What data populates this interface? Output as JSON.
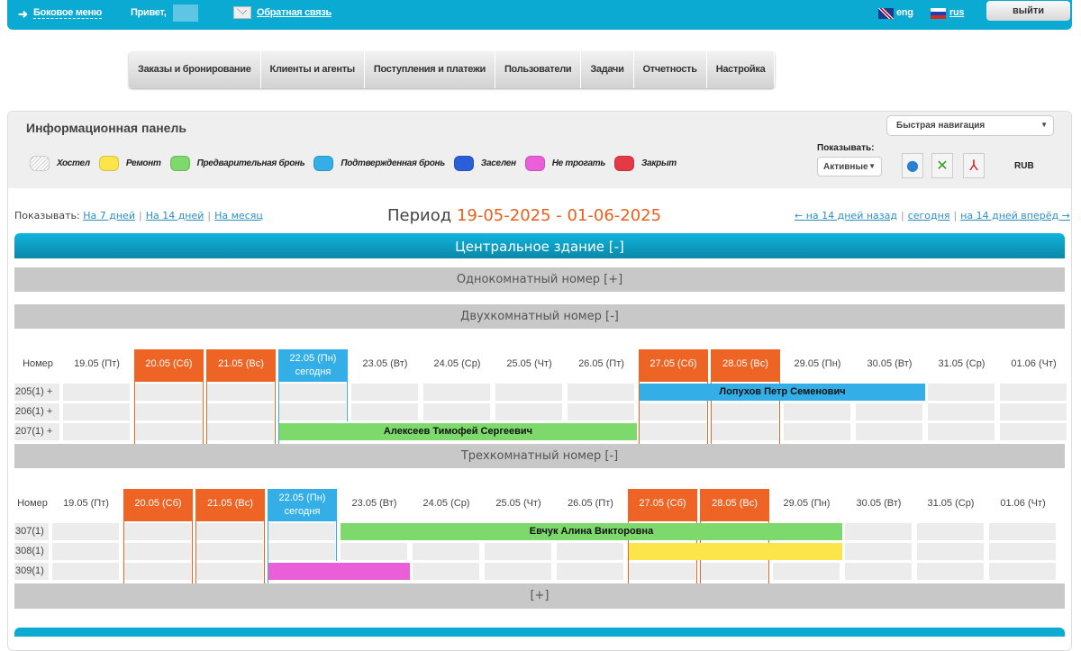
{
  "topbar": {
    "side_menu": "Боковое меню",
    "greeting": "Привет,",
    "feedback": "Обратная связь",
    "lang_en": "eng",
    "lang_ru": "rus",
    "exit": "выйти"
  },
  "menu": [
    "Заказы и бронирование",
    "Клиенты и агенты",
    "Поступления и платежи",
    "Пользователи",
    "Задачи",
    "Отчетность",
    "Настройка"
  ],
  "panel": {
    "title": "Информационная панель",
    "quick_nav": "Быстрая навигация",
    "show_label": "Показывать:",
    "show_value": "Активные",
    "currency": "RUB",
    "legend": [
      {
        "label": "Хостел",
        "color": "#e8e8e8"
      },
      {
        "label": "Ремонт",
        "color": "#fbe54a"
      },
      {
        "label": "Предварительная бронь",
        "color": "#7dd96c"
      },
      {
        "label": "Подтвержденная бронь",
        "color": "#34aee6"
      },
      {
        "label": "Заселен",
        "color": "#2a5fd8"
      },
      {
        "label": "Не трогать",
        "color": "#ea5fd8"
      },
      {
        "label": "Закрыт",
        "color": "#e43a45"
      }
    ]
  },
  "filters": {
    "show": "Показывать:",
    "d7": "На 7 дней",
    "d14": "На 14 дней",
    "month": "На месяц"
  },
  "period": {
    "label": "Период",
    "range": "19-05-2025 - 01-06-2025"
  },
  "nav": {
    "back": "← на 14 дней назад",
    "today": "сегодня",
    "forward": "на 14 дней вперёд →"
  },
  "building": "Центральное здание [-]",
  "room_types": {
    "single": "Однокомнатный номер [+]",
    "double": "Двухкомнатный номер [-]",
    "triple": "Трехкомнатный номер [-]"
  },
  "col_room": "Номер",
  "today_label": "сегодня",
  "days": [
    {
      "d": "19.05 (Пт)"
    },
    {
      "d": "20.05 (Сб)",
      "we": true
    },
    {
      "d": "21.05 (Вс)",
      "we": true
    },
    {
      "d": "22.05 (Пн)",
      "today": true
    },
    {
      "d": "23.05 (Вт)"
    },
    {
      "d": "24.05 (Ср)"
    },
    {
      "d": "25.05 (Чт)"
    },
    {
      "d": "26.05 (Пт)"
    },
    {
      "d": "27.05 (Сб)",
      "we": true
    },
    {
      "d": "28.05 (Вс)",
      "we": true
    },
    {
      "d": "29.05 (Пн)"
    },
    {
      "d": "30.05 (Вт)"
    },
    {
      "d": "31.05 (Ср)"
    },
    {
      "d": "01.06 (Чт)"
    }
  ],
  "double_rooms": [
    {
      "room": "205(1) +",
      "bookings": [
        {
          "name": "Лопухов Петр Семенович",
          "start": 8,
          "len": 4,
          "color": "#34aee6"
        }
      ]
    },
    {
      "room": "206(1) +",
      "bookings": []
    },
    {
      "room": "207(1) +",
      "bookings": [
        {
          "name": "Алексеев Тимофей Сергеевич",
          "start": 3,
          "len": 5,
          "color": "#7dd96c"
        }
      ]
    }
  ],
  "triple_rooms": [
    {
      "room": "307(1)",
      "bookings": [
        {
          "name": "Евчук Алина Викторовна",
          "start": 4,
          "len": 7,
          "color": "#7dd96c"
        }
      ]
    },
    {
      "room": "308(1)",
      "bookings": [
        {
          "name": "",
          "start": 8,
          "len": 3,
          "color": "#fbe54a"
        }
      ]
    },
    {
      "room": "309(1)",
      "bookings": [
        {
          "name": "",
          "start": 3,
          "len": 2,
          "color": "#ea5fd8"
        }
      ]
    }
  ],
  "more": "[+]"
}
